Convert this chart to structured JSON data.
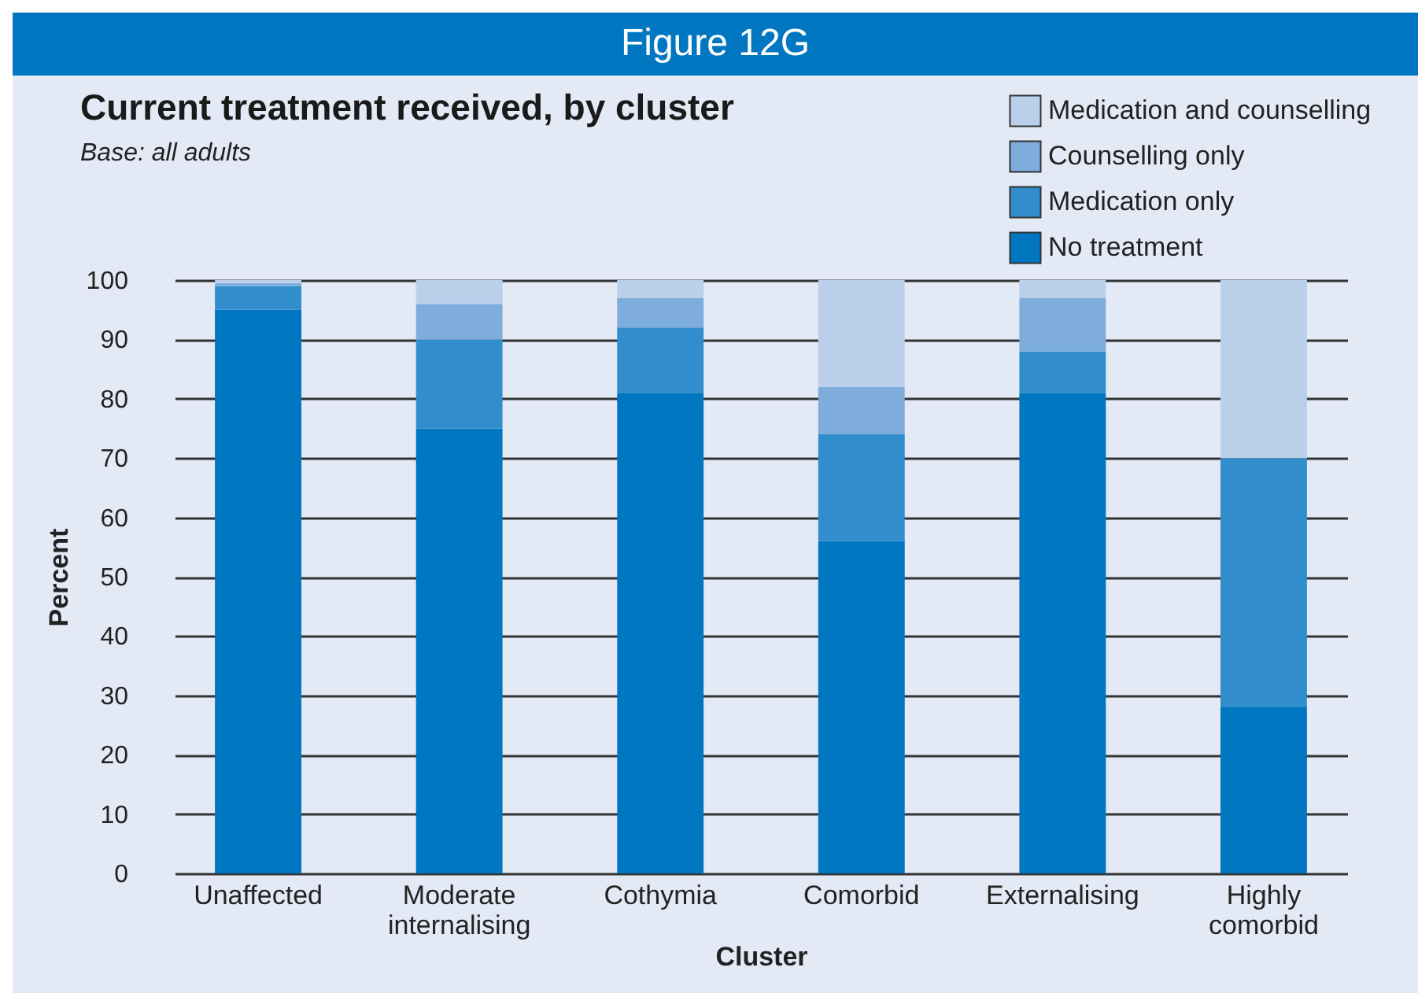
{
  "chart_data": {
    "type": "bar",
    "title": "Current treatment received, by cluster",
    "subtitle": "Base: all adults",
    "annotations": [
      "Figure 12G"
    ],
    "xlabel": "Cluster",
    "ylabel": "Percent",
    "categories": [
      "Unaffected",
      "Moderate internalising",
      "Cothymia",
      "Comorbid",
      "Externalising",
      "Highly comorbid"
    ],
    "stacked": true,
    "ylim": [
      0,
      100
    ],
    "yticks": [
      0,
      10,
      20,
      30,
      40,
      50,
      60,
      70,
      80,
      90,
      100
    ],
    "grid": "y",
    "legend": "top right",
    "series": [
      {
        "name": "No treatment",
        "color": "#0077c0",
        "values": [
          95,
          75,
          81,
          56,
          81,
          28
        ]
      },
      {
        "name": "Medication only",
        "color": "#318dcc",
        "values": [
          4,
          15,
          11,
          18,
          7,
          42
        ]
      },
      {
        "name": "Counselling only",
        "color": "#7eaddb",
        "values": [
          0.5,
          6,
          5,
          8,
          9,
          0
        ]
      },
      {
        "name": "Medication and counselling",
        "color": "#bad0ea",
        "values": [
          0.5,
          4,
          3,
          18,
          3,
          30
        ]
      }
    ]
  }
}
